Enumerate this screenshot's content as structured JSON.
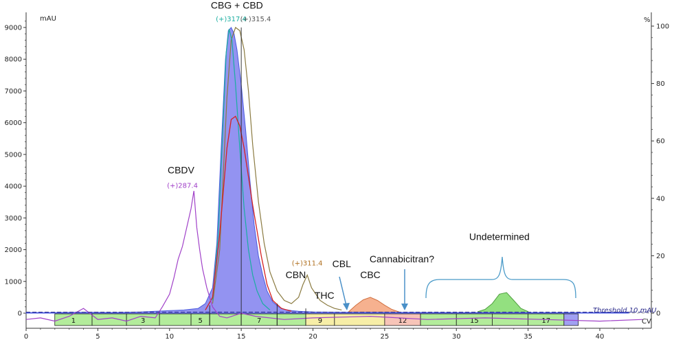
{
  "chart_data": {
    "type": "line",
    "title": "",
    "xlabel": "CV",
    "ylabel": "mAU",
    "y2label": "%",
    "xlim": [
      0,
      44
    ],
    "ylim": [
      -300,
      9300
    ],
    "y2lim": [
      -3.2,
      100
    ],
    "x_ticks": [
      0,
      5,
      10,
      15,
      20,
      25,
      30,
      35,
      40
    ],
    "y_ticks": [
      0,
      1000,
      2000,
      3000,
      4000,
      5000,
      6000,
      7000,
      8000,
      9000
    ],
    "y2_ticks": [
      0,
      20,
      40,
      60,
      80,
      100
    ],
    "threshold": {
      "label": "Threshold 10 mAU",
      "value": 10
    },
    "colors": {
      "uv_fill": "#8080ee",
      "uv_line": "#4a5adf",
      "cbdv_trace": "#a040c8",
      "red_trace": "#d42020",
      "teal_trace": "#1aaea0",
      "brown_trace": "#8a7a40",
      "olive_trace": "#b0a030",
      "blue_trace": "#3060d0",
      "fraction_green": "#9ae67a",
      "fraction_yellow": "#f4e88a",
      "fraction_pink": "#f4b0a0",
      "fraction_salmon": "#f29060",
      "threshold_line": "#2a2a8a"
    },
    "series": [
      {
        "type": "uv_absorbance",
        "x": [
          0,
          2,
          4,
          6,
          8,
          10,
          11,
          12,
          12.5,
          13,
          13.3,
          13.6,
          13.9,
          14.1,
          14.3,
          14.5,
          14.7,
          15,
          15.3,
          15.6,
          15.9,
          16.2,
          16.5,
          16.8,
          17.2,
          17.6,
          18,
          18.5,
          19,
          20,
          22,
          25,
          30,
          35,
          40,
          42
        ],
        "values": [
          20,
          20,
          30,
          20,
          40,
          80,
          100,
          150,
          300,
          800,
          2200,
          5200,
          8000,
          8900,
          9000,
          8800,
          8300,
          7200,
          5800,
          4200,
          2800,
          1800,
          1200,
          700,
          350,
          200,
          120,
          80,
          60,
          40,
          30,
          25,
          20,
          20,
          20,
          20
        ]
      },
      {
        "type": "cbdv_mass_trace",
        "x": [
          0,
          1,
          2,
          3,
          4,
          5,
          6,
          7,
          8,
          9,
          9.5,
          10,
          10.3,
          10.6,
          10.9,
          11.2,
          11.5,
          11.7,
          11.9,
          12.1,
          12.3,
          12.6,
          13,
          13.5,
          14,
          15,
          16,
          18,
          20,
          24,
          28,
          32,
          36,
          40,
          43
        ],
        "values": [
          -200,
          -150,
          -250,
          -100,
          150,
          -200,
          -150,
          -250,
          -100,
          -150,
          200,
          600,
          1100,
          1700,
          2100,
          2700,
          3300,
          3850,
          2700,
          2000,
          1400,
          800,
          200,
          -100,
          -150,
          0,
          -100,
          -200,
          -150,
          -100,
          -200,
          -150,
          -200,
          -250,
          -200
        ]
      },
      {
        "type": "red_mass_trace",
        "x": [
          12.5,
          13,
          13.5,
          14,
          14.3,
          14.6,
          14.9,
          15.2,
          15.5,
          15.8,
          16.1,
          16.4,
          16.8,
          17.2,
          17.8,
          18.5
        ],
        "values": [
          100,
          500,
          2500,
          5200,
          6100,
          6200,
          5900,
          5200,
          4300,
          3400,
          2600,
          1800,
          900,
          400,
          150,
          60
        ]
      },
      {
        "type": "teal_mass_trace",
        "x": [
          13,
          13.4,
          13.7,
          13.95,
          14.15,
          14.35,
          14.6,
          14.9,
          15.2,
          15.5,
          15.8,
          16.1,
          16.5,
          17
        ],
        "values": [
          400,
          2500,
          5600,
          8200,
          8950,
          8600,
          7200,
          5200,
          3300,
          2000,
          1200,
          700,
          300,
          100
        ]
      },
      {
        "type": "brown_mass_trace",
        "x": [
          13,
          13.5,
          14,
          14.3,
          14.6,
          14.9,
          15.2,
          15.5,
          15.8,
          16.2,
          16.6,
          17,
          17.5,
          18,
          18.5,
          19,
          19.3,
          19.6,
          19.9,
          20.2,
          20.5,
          21,
          21.5,
          22
        ],
        "values": [
          300,
          2000,
          6800,
          8600,
          9000,
          8900,
          8300,
          7000,
          5300,
          3500,
          2200,
          1300,
          700,
          400,
          300,
          500,
          900,
          1200,
          800,
          600,
          400,
          250,
          150,
          100
        ]
      },
      {
        "type": "cbc_fraction_profile",
        "x": [
          22.5,
          23,
          23.5,
          24,
          24.5,
          25,
          25.5,
          26
        ],
        "values": [
          50,
          250,
          420,
          500,
          400,
          250,
          120,
          40
        ]
      },
      {
        "type": "undetermined_profile",
        "x": [
          31.5,
          32,
          32.5,
          33,
          33.5,
          34,
          34.5,
          35
        ],
        "values": [
          50,
          120,
          300,
          600,
          650,
          400,
          150,
          50
        ]
      }
    ],
    "fractions": [
      {
        "label": "1",
        "start": 2,
        "end": 4.6
      },
      {
        "label": "",
        "start": 4.6,
        "end": 7
      },
      {
        "label": "3",
        "start": 7,
        "end": 9.3
      },
      {
        "label": "",
        "start": 9.3,
        "end": 11.5
      },
      {
        "label": "5",
        "start": 11.5,
        "end": 12.8
      },
      {
        "label": "",
        "start": 12.8,
        "end": 15
      },
      {
        "label": "7",
        "start": 15,
        "end": 17.5
      },
      {
        "label": "",
        "start": 17.5,
        "end": 19.5
      },
      {
        "label": "9",
        "start": 19.5,
        "end": 21.5
      },
      {
        "label": "",
        "start": 21.5,
        "end": 25
      },
      {
        "label": "12",
        "start": 25,
        "end": 27.5
      },
      {
        "label": "",
        "start": 27.5,
        "end": 30
      },
      {
        "label": "15",
        "start": 30,
        "end": 32.5
      },
      {
        "label": "",
        "start": 32.5,
        "end": 35
      },
      {
        "label": "17",
        "start": 35,
        "end": 37.5
      },
      {
        "label": "",
        "start": 37.5,
        "end": 38.5
      }
    ],
    "annotations": [
      {
        "label": "CBDV",
        "x": 10.8,
        "y": 4400,
        "kind": "peak"
      },
      {
        "label": "(+)287.4",
        "x": 10.9,
        "y": 3950,
        "kind": "mz",
        "color": "#a040c8"
      },
      {
        "label": "CBG + CBD",
        "x": 14.7,
        "y": 9600,
        "kind": "peak"
      },
      {
        "label": "(+)317.4",
        "x": 14.3,
        "y": 9200,
        "kind": "mz",
        "color": "#1aaea0"
      },
      {
        "label": "(+)315.4",
        "x": 16.0,
        "y": 9200,
        "kind": "mz",
        "color": "#555555"
      },
      {
        "label": "CBN",
        "x": 18.8,
        "y": 1100,
        "kind": "peak"
      },
      {
        "label": "(+)311.4",
        "x": 19.6,
        "y": 1500,
        "kind": "mz",
        "color": "#b07020"
      },
      {
        "label": "THC",
        "x": 20.8,
        "y": 450,
        "kind": "peak"
      },
      {
        "label": "CBL",
        "x": 22.0,
        "y": 1450,
        "kind": "peak"
      },
      {
        "label": "CBC",
        "x": 24.0,
        "y": 1100,
        "kind": "peak"
      },
      {
        "label": "Cannabicitran?",
        "x": 26.2,
        "y": 1600,
        "kind": "peak"
      },
      {
        "label": "Undetermined",
        "x": 33.0,
        "y": 2300,
        "kind": "peak"
      }
    ]
  }
}
